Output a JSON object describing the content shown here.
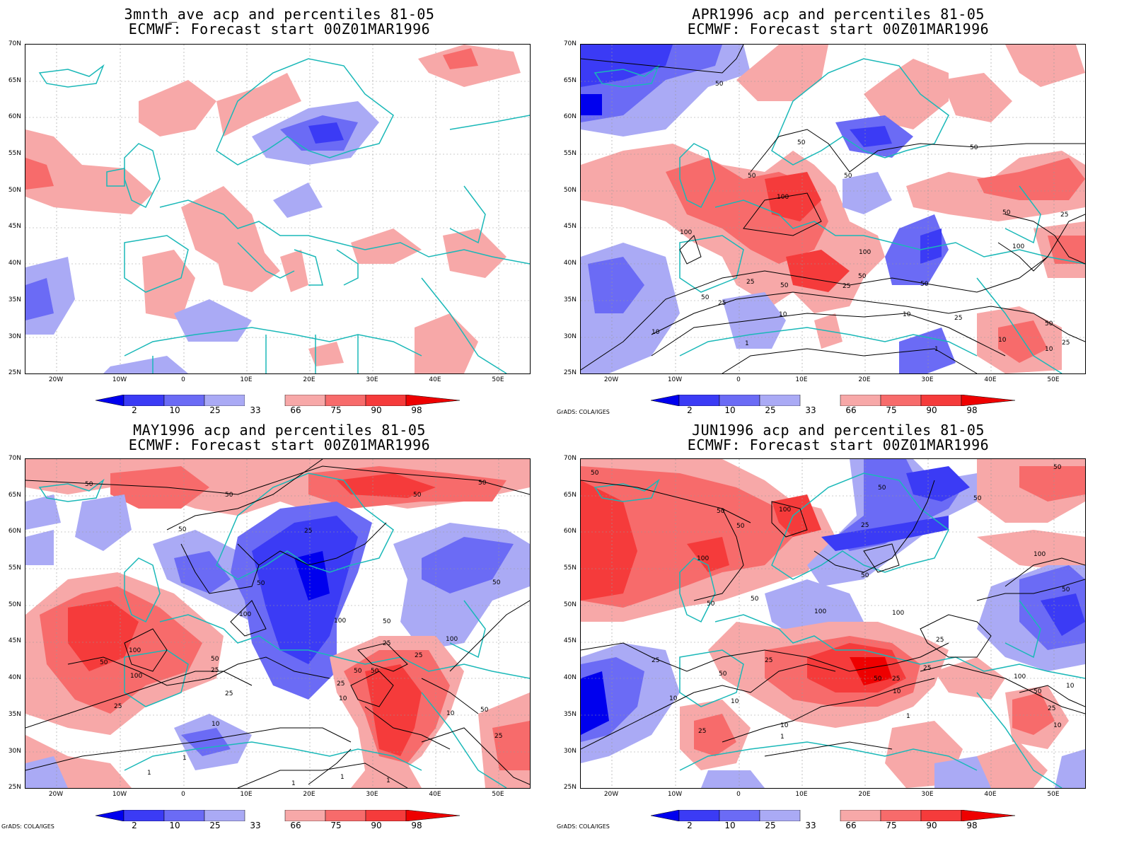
{
  "panels": [
    {
      "title1": "3mnth_ave acp and percentiles 81-05",
      "title2": "ECMWF: Forecast start 00Z01MAR1996"
    },
    {
      "title1": "APR1996 acp and percentiles 81-05",
      "title2": "ECMWF: Forecast start 00Z01MAR1996"
    },
    {
      "title1": "MAY1996 acp and percentiles 81-05",
      "title2": "ECMWF: Forecast start 00Z01MAR1996"
    },
    {
      "title1": "JUN1996 acp and percentiles 81-05",
      "title2": "ECMWF: Forecast start 00Z01MAR1996"
    }
  ],
  "lat_labels": [
    "70N",
    "65N",
    "60N",
    "55N",
    "50N",
    "45N",
    "40N",
    "35N",
    "30N",
    "25N"
  ],
  "lon_labels": [
    "20W",
    "10W",
    "0",
    "10E",
    "20E",
    "30E",
    "40E",
    "50E"
  ],
  "colorbar": {
    "labels": [
      "2",
      "10",
      "25",
      "33",
      "66",
      "75",
      "90",
      "98"
    ],
    "colors": [
      "#0000ee",
      "#3b3bf5",
      "#6b6bf5",
      "#aaaaf5",
      "#ffffff",
      "#f7a8a8",
      "#f76b6b",
      "#f53b3b",
      "#ee0000"
    ]
  },
  "credit": "GrADS: COLA/IGES",
  "colors": {
    "coast": "#1ab8b8",
    "contour": "#000000",
    "low": "#4848f0",
    "high": "#f04848"
  }
}
